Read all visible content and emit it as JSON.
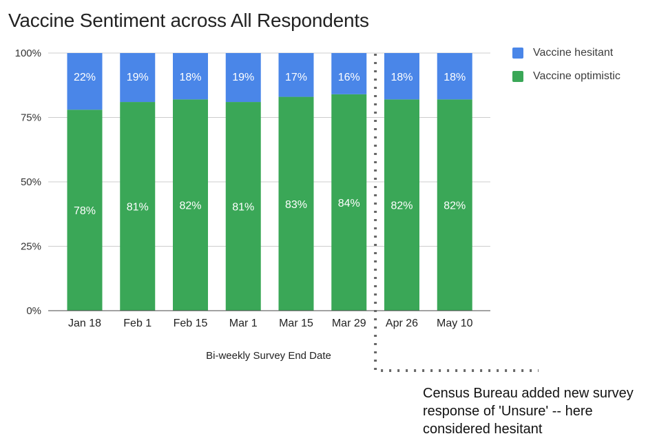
{
  "chart_data": {
    "type": "bar",
    "stacked": true,
    "title": "Vaccine Sentiment across All Respondents",
    "xlabel": "Bi-weekly Survey End Date",
    "ylabel": "",
    "ylim": [
      0,
      100
    ],
    "y_ticks": [
      "0%",
      "25%",
      "50%",
      "75%",
      "100%"
    ],
    "y_tick_values": [
      0,
      25,
      50,
      75,
      100
    ],
    "grid": true,
    "legend_position": "right",
    "categories": [
      "Jan 18",
      "Feb 1",
      "Feb 15",
      "Mar 1",
      "Mar 15",
      "Mar 29",
      "Apr 26",
      "May 10"
    ],
    "series": [
      {
        "name": "Vaccine optimistic",
        "color": "#3aa757",
        "values": [
          78,
          81,
          82,
          81,
          83,
          84,
          82,
          82
        ],
        "labels": [
          "78%",
          "81%",
          "82%",
          "81%",
          "83%",
          "84%",
          "82%",
          "82%"
        ]
      },
      {
        "name": "Vaccine hesitant",
        "color": "#4a86e8",
        "values": [
          22,
          19,
          18,
          19,
          17,
          16,
          18,
          18
        ],
        "labels": [
          "22%",
          "19%",
          "18%",
          "19%",
          "17%",
          "16%",
          "18%",
          "18%"
        ]
      }
    ],
    "legend": [
      {
        "name": "Vaccine hesitant",
        "color": "#4a86e8"
      },
      {
        "name": "Vaccine optimistic",
        "color": "#3aa757"
      }
    ],
    "annotation": "Census Bureau added new survey response of 'Unsure' -- here considered hesitant",
    "annotation_after_category": "Mar 29"
  }
}
